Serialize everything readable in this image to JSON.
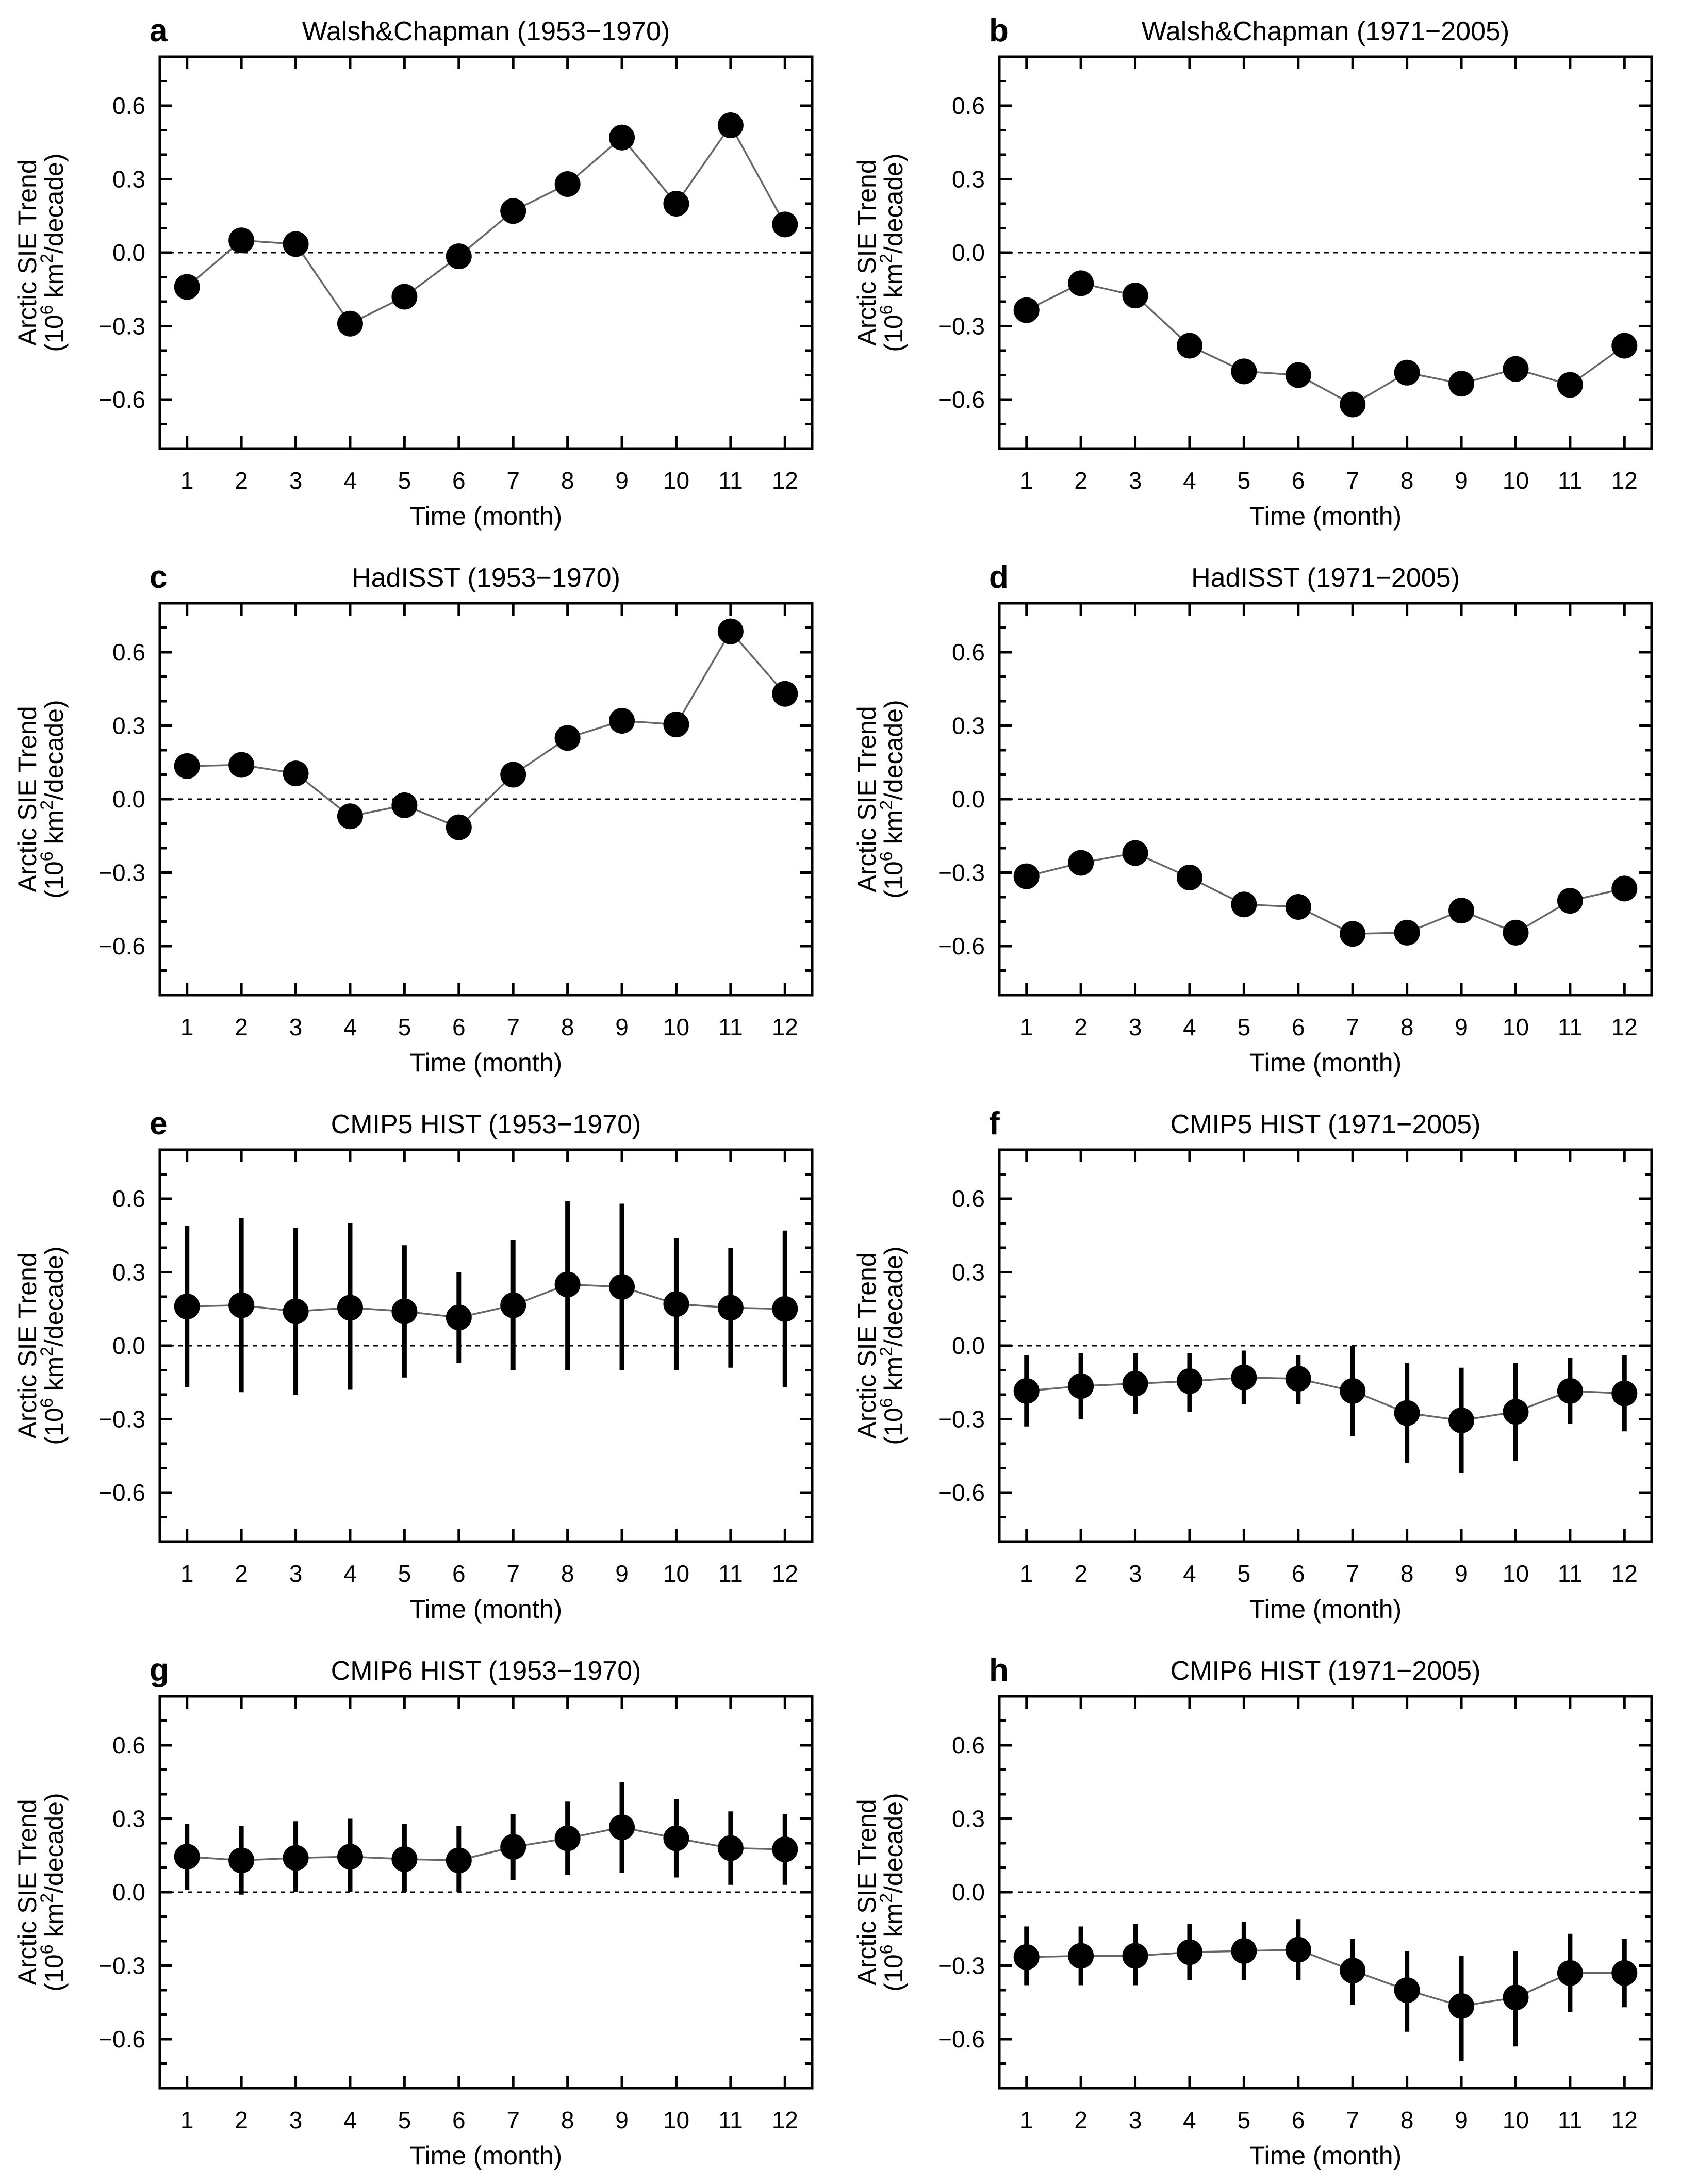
{
  "chart_data": [
    {
      "type": "line",
      "panel": "a",
      "title": "Walsh&Chapman (1953−1970)",
      "xlabel": "Time (month)",
      "ylabel_line1": "Arctic SIE Trend",
      "ylabel_line2": {
        "prefix": "(10",
        "sup1": "6",
        "mid": " km",
        "sup2": "2",
        "suffix": "/decade)"
      },
      "x": [
        1,
        2,
        3,
        4,
        5,
        6,
        7,
        8,
        9,
        10,
        11,
        12
      ],
      "x_tick_labels": [
        "1",
        "2",
        "3",
        "4",
        "5",
        "6",
        "7",
        "8",
        "9",
        "10",
        "11",
        "12"
      ],
      "y_tick_values": [
        0.6,
        0.3,
        0.0,
        -0.3,
        -0.6
      ],
      "y_tick_labels": [
        "0.6",
        "0.3",
        "0.0",
        "−0.3",
        "−0.6"
      ],
      "xlim": [
        0.5,
        12.5
      ],
      "ylim": [
        -0.8,
        0.8
      ],
      "values": [
        -0.14,
        0.05,
        0.035,
        -0.29,
        -0.18,
        -0.015,
        0.17,
        0.28,
        0.47,
        0.2,
        0.52,
        0.115
      ],
      "reference_line": 0.0
    },
    {
      "type": "line",
      "panel": "b",
      "title": "Walsh&Chapman (1971−2005)",
      "xlabel": "Time (month)",
      "ylabel_line1": "Arctic SIE Trend",
      "ylabel_line2": {
        "prefix": "(10",
        "sup1": "6",
        "mid": " km",
        "sup2": "2",
        "suffix": "/decade)"
      },
      "x": [
        1,
        2,
        3,
        4,
        5,
        6,
        7,
        8,
        9,
        10,
        11,
        12
      ],
      "x_tick_labels": [
        "1",
        "2",
        "3",
        "4",
        "5",
        "6",
        "7",
        "8",
        "9",
        "10",
        "11",
        "12"
      ],
      "y_tick_values": [
        0.6,
        0.3,
        0.0,
        -0.3,
        -0.6
      ],
      "y_tick_labels": [
        "0.6",
        "0.3",
        "0.0",
        "−0.3",
        "−0.6"
      ],
      "xlim": [
        0.5,
        12.5
      ],
      "ylim": [
        -0.8,
        0.8
      ],
      "values": [
        -0.235,
        -0.125,
        -0.175,
        -0.38,
        -0.485,
        -0.5,
        -0.62,
        -0.49,
        -0.535,
        -0.475,
        -0.54,
        -0.38
      ],
      "reference_line": 0.0
    },
    {
      "type": "line",
      "panel": "c",
      "title": "HadISST (1953−1970)",
      "xlabel": "Time (month)",
      "ylabel_line1": "Arctic SIE Trend",
      "ylabel_line2": {
        "prefix": "(10",
        "sup1": "6",
        "mid": " km",
        "sup2": "2",
        "suffix": "/decade)"
      },
      "x": [
        1,
        2,
        3,
        4,
        5,
        6,
        7,
        8,
        9,
        10,
        11,
        12
      ],
      "x_tick_labels": [
        "1",
        "2",
        "3",
        "4",
        "5",
        "6",
        "7",
        "8",
        "9",
        "10",
        "11",
        "12"
      ],
      "y_tick_values": [
        0.6,
        0.3,
        0.0,
        -0.3,
        -0.6
      ],
      "y_tick_labels": [
        "0.6",
        "0.3",
        "0.0",
        "−0.3",
        "−0.6"
      ],
      "xlim": [
        0.5,
        12.5
      ],
      "ylim": [
        -0.8,
        0.8
      ],
      "values": [
        0.135,
        0.14,
        0.105,
        -0.07,
        -0.025,
        -0.115,
        0.1,
        0.25,
        0.32,
        0.305,
        0.685,
        0.43
      ],
      "reference_line": 0.0
    },
    {
      "type": "line",
      "panel": "d",
      "title": "HadISST (1971−2005)",
      "xlabel": "Time (month)",
      "ylabel_line1": "Arctic SIE Trend",
      "ylabel_line2": {
        "prefix": "(10",
        "sup1": "6",
        "mid": " km",
        "sup2": "2",
        "suffix": "/decade)"
      },
      "x": [
        1,
        2,
        3,
        4,
        5,
        6,
        7,
        8,
        9,
        10,
        11,
        12
      ],
      "x_tick_labels": [
        "1",
        "2",
        "3",
        "4",
        "5",
        "6",
        "7",
        "8",
        "9",
        "10",
        "11",
        "12"
      ],
      "y_tick_values": [
        0.6,
        0.3,
        0.0,
        -0.3,
        -0.6
      ],
      "y_tick_labels": [
        "0.6",
        "0.3",
        "0.0",
        "−0.3",
        "−0.6"
      ],
      "xlim": [
        0.5,
        12.5
      ],
      "ylim": [
        -0.8,
        0.8
      ],
      "values": [
        -0.315,
        -0.26,
        -0.22,
        -0.32,
        -0.43,
        -0.44,
        -0.55,
        -0.545,
        -0.455,
        -0.545,
        -0.415,
        -0.365
      ],
      "reference_line": 0.0
    },
    {
      "type": "line",
      "panel": "e",
      "title": "CMIP5 HIST (1953−1970)",
      "xlabel": "Time (month)",
      "ylabel_line1": "Arctic SIE Trend",
      "ylabel_line2": {
        "prefix": "(10",
        "sup1": "6",
        "mid": " km",
        "sup2": "2",
        "suffix": "/decade)"
      },
      "x": [
        1,
        2,
        3,
        4,
        5,
        6,
        7,
        8,
        9,
        10,
        11,
        12
      ],
      "x_tick_labels": [
        "1",
        "2",
        "3",
        "4",
        "5",
        "6",
        "7",
        "8",
        "9",
        "10",
        "11",
        "12"
      ],
      "y_tick_values": [
        0.6,
        0.3,
        0.0,
        -0.3,
        -0.6
      ],
      "y_tick_labels": [
        "0.6",
        "0.3",
        "0.0",
        "−0.3",
        "−0.6"
      ],
      "xlim": [
        0.5,
        12.5
      ],
      "ylim": [
        -0.8,
        0.8
      ],
      "values": [
        0.16,
        0.165,
        0.14,
        0.155,
        0.14,
        0.115,
        0.165,
        0.25,
        0.24,
        0.17,
        0.155,
        0.15
      ],
      "error_low": [
        -0.17,
        -0.19,
        -0.2,
        -0.18,
        -0.13,
        -0.07,
        -0.1,
        -0.1,
        -0.1,
        -0.1,
        -0.09,
        -0.17
      ],
      "error_high": [
        0.49,
        0.52,
        0.48,
        0.5,
        0.41,
        0.3,
        0.43,
        0.59,
        0.58,
        0.44,
        0.4,
        0.47
      ],
      "reference_line": 0.0
    },
    {
      "type": "line",
      "panel": "f",
      "title": "CMIP5 HIST (1971−2005)",
      "xlabel": "Time (month)",
      "ylabel_line1": "Arctic SIE Trend",
      "ylabel_line2": {
        "prefix": "(10",
        "sup1": "6",
        "mid": " km",
        "sup2": "2",
        "suffix": "/decade)"
      },
      "x": [
        1,
        2,
        3,
        4,
        5,
        6,
        7,
        8,
        9,
        10,
        11,
        12
      ],
      "x_tick_labels": [
        "1",
        "2",
        "3",
        "4",
        "5",
        "6",
        "7",
        "8",
        "9",
        "10",
        "11",
        "12"
      ],
      "y_tick_values": [
        0.6,
        0.3,
        0.0,
        -0.3,
        -0.6
      ],
      "y_tick_labels": [
        "0.6",
        "0.3",
        "0.0",
        "−0.3",
        "−0.6"
      ],
      "xlim": [
        0.5,
        12.5
      ],
      "ylim": [
        -0.8,
        0.8
      ],
      "values": [
        -0.185,
        -0.165,
        -0.155,
        -0.145,
        -0.13,
        -0.135,
        -0.185,
        -0.275,
        -0.305,
        -0.27,
        -0.185,
        -0.195
      ],
      "error_low": [
        -0.33,
        -0.3,
        -0.28,
        -0.27,
        -0.24,
        -0.24,
        -0.37,
        -0.48,
        -0.52,
        -0.47,
        -0.32,
        -0.35
      ],
      "error_high": [
        -0.04,
        -0.03,
        -0.03,
        -0.03,
        -0.02,
        -0.04,
        0.0,
        -0.07,
        -0.09,
        -0.07,
        -0.05,
        -0.04
      ],
      "reference_line": 0.0
    },
    {
      "type": "line",
      "panel": "g",
      "title": "CMIP6 HIST (1953−1970)",
      "xlabel": "Time (month)",
      "ylabel_line1": "Arctic SIE Trend",
      "ylabel_line2": {
        "prefix": "(10",
        "sup1": "6",
        "mid": " km",
        "sup2": "2",
        "suffix": "/decade)"
      },
      "x": [
        1,
        2,
        3,
        4,
        5,
        6,
        7,
        8,
        9,
        10,
        11,
        12
      ],
      "x_tick_labels": [
        "1",
        "2",
        "3",
        "4",
        "5",
        "6",
        "7",
        "8",
        "9",
        "10",
        "11",
        "12"
      ],
      "y_tick_values": [
        0.6,
        0.3,
        0.0,
        -0.3,
        -0.6
      ],
      "y_tick_labels": [
        "0.6",
        "0.3",
        "0.0",
        "−0.3",
        "−0.6"
      ],
      "xlim": [
        0.5,
        12.5
      ],
      "ylim": [
        -0.8,
        0.8
      ],
      "values": [
        0.145,
        0.13,
        0.14,
        0.145,
        0.135,
        0.13,
        0.185,
        0.22,
        0.265,
        0.22,
        0.18,
        0.175
      ],
      "error_low": [
        0.01,
        -0.01,
        0.0,
        0.0,
        0.0,
        0.0,
        0.05,
        0.07,
        0.08,
        0.06,
        0.03,
        0.03
      ],
      "error_high": [
        0.28,
        0.27,
        0.29,
        0.3,
        0.28,
        0.27,
        0.32,
        0.37,
        0.45,
        0.38,
        0.33,
        0.32
      ],
      "reference_line": 0.0
    },
    {
      "type": "line",
      "panel": "h",
      "title": "CMIP6 HIST (1971−2005)",
      "xlabel": "Time (month)",
      "ylabel_line1": "Arctic SIE Trend",
      "ylabel_line2": {
        "prefix": "(10",
        "sup1": "6",
        "mid": " km",
        "sup2": "2",
        "suffix": "/decade)"
      },
      "x": [
        1,
        2,
        3,
        4,
        5,
        6,
        7,
        8,
        9,
        10,
        11,
        12
      ],
      "x_tick_labels": [
        "1",
        "2",
        "3",
        "4",
        "5",
        "6",
        "7",
        "8",
        "9",
        "10",
        "11",
        "12"
      ],
      "y_tick_values": [
        0.6,
        0.3,
        0.0,
        -0.3,
        -0.6
      ],
      "y_tick_labels": [
        "0.6",
        "0.3",
        "0.0",
        "−0.3",
        "−0.6"
      ],
      "xlim": [
        0.5,
        12.5
      ],
      "ylim": [
        -0.8,
        0.8
      ],
      "values": [
        -0.265,
        -0.26,
        -0.26,
        -0.245,
        -0.24,
        -0.235,
        -0.32,
        -0.4,
        -0.465,
        -0.43,
        -0.33,
        -0.33
      ],
      "error_low": [
        -0.38,
        -0.38,
        -0.38,
        -0.36,
        -0.36,
        -0.36,
        -0.46,
        -0.57,
        -0.69,
        -0.63,
        -0.49,
        -0.47
      ],
      "error_high": [
        -0.14,
        -0.14,
        -0.13,
        -0.13,
        -0.12,
        -0.11,
        -0.19,
        -0.24,
        -0.26,
        -0.24,
        -0.17,
        -0.19
      ],
      "reference_line": 0.0
    }
  ]
}
